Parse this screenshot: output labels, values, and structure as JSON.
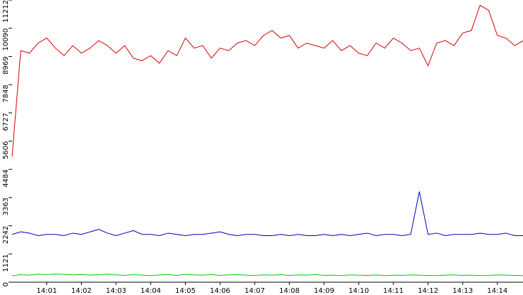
{
  "chart_data": {
    "type": "line",
    "x": [
      0,
      0.25,
      0.5,
      0.75,
      1,
      1.25,
      1.5,
      1.75,
      2,
      2.25,
      2.5,
      2.75,
      3,
      3.25,
      3.5,
      3.75,
      4,
      4.25,
      4.5,
      4.75,
      5,
      5.25,
      5.5,
      5.75,
      6,
      6.25,
      6.5,
      6.75,
      7,
      7.25,
      7.5,
      7.75,
      8,
      8.25,
      8.5,
      8.75,
      9,
      9.25,
      9.5,
      9.75,
      10,
      10.25,
      10.5,
      10.75,
      11,
      11.25,
      11.5,
      11.75,
      12,
      12.25,
      12.5,
      12.75,
      13,
      13.25,
      13.5,
      13.75,
      14,
      14.25,
      14.5,
      14.75
    ],
    "series": [
      {
        "color": "#d40000",
        "values": [
          5000,
          9200,
          9100,
          9500,
          9700,
          9300,
          9000,
          9400,
          9100,
          9300,
          9600,
          9400,
          9100,
          9400,
          8900,
          8800,
          9000,
          8700,
          9200,
          9000,
          9700,
          9300,
          9400,
          8900,
          9300,
          9200,
          9500,
          9600,
          9400,
          9800,
          10000,
          9700,
          9800,
          9300,
          9500,
          9400,
          9300,
          9600,
          9200,
          9400,
          9100,
          9000,
          9500,
          9300,
          9700,
          9500,
          9200,
          9300,
          8600,
          9500,
          9600,
          9400,
          9900,
          10000,
          11000,
          10800,
          9800,
          9700,
          9400,
          9600
        ]
      },
      {
        "color": "#0000b4",
        "values": [
          1900,
          2000,
          1950,
          1850,
          1900,
          1900,
          1850,
          1950,
          1900,
          2000,
          2100,
          1950,
          1850,
          1950,
          2050,
          1900,
          1900,
          1850,
          1950,
          1900,
          1850,
          1900,
          1900,
          1950,
          2000,
          1900,
          1850,
          1900,
          1900,
          1850,
          1850,
          1900,
          1850,
          1900,
          1850,
          1850,
          1900,
          1850,
          1900,
          1850,
          1900,
          1950,
          1850,
          1900,
          1900,
          1850,
          1900,
          3600,
          1900,
          1950,
          1850,
          1900,
          1900,
          1900,
          1950,
          1900,
          1900,
          1950,
          1850,
          1850
        ]
      },
      {
        "color": "#00cc00",
        "values": [
          250,
          300,
          280,
          320,
          300,
          330,
          310,
          290,
          300,
          280,
          300,
          320,
          290,
          270,
          300,
          280,
          260,
          290,
          300,
          270,
          310,
          290,
          280,
          300,
          270,
          290,
          300,
          280,
          270,
          290,
          280,
          300,
          270,
          290,
          280,
          300,
          270,
          280,
          260,
          290,
          280,
          270,
          290,
          260,
          280,
          270,
          290,
          280,
          270,
          260,
          280,
          290,
          270,
          280,
          260,
          270,
          290,
          280,
          270,
          260
        ]
      }
    ],
    "xlim": [
      0,
      14.74
    ],
    "xticks": [
      {
        "value": 1,
        "label": "14:01"
      },
      {
        "value": 2,
        "label": "14:02"
      },
      {
        "value": 3,
        "label": "14:03"
      },
      {
        "value": 4,
        "label": "14:04"
      },
      {
        "value": 5,
        "label": "14:05"
      },
      {
        "value": 6,
        "label": "14:06"
      },
      {
        "value": 7,
        "label": "14:07"
      },
      {
        "value": 8,
        "label": "14:08"
      },
      {
        "value": 9,
        "label": "14:09"
      },
      {
        "value": 10,
        "label": "14:10"
      },
      {
        "value": 11,
        "label": "14:11"
      },
      {
        "value": 12,
        "label": "14:12"
      },
      {
        "value": 13,
        "label": "14:13"
      },
      {
        "value": 14,
        "label": "14:14"
      }
    ],
    "ylim": [
      0,
      11212
    ],
    "yticks": [
      0,
      1121,
      2242,
      3363,
      4484,
      5606,
      6727,
      7848,
      8969,
      10090,
      11212
    ]
  }
}
